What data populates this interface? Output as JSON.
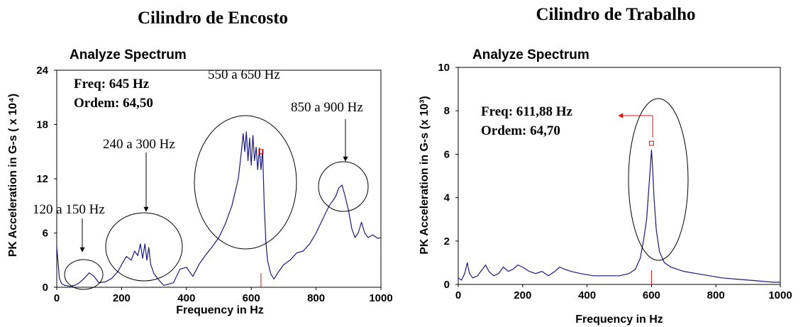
{
  "chart_data": [
    {
      "type": "line",
      "title": "Cilindro de Encosto",
      "subtitle": "Analyze Spectrum",
      "xlabel": "Frequency in Hz",
      "ylabel": "PK Acceleration in G-s ( x 10⁴)",
      "xlim": [
        0,
        1000
      ],
      "ylim": [
        0,
        24
      ],
      "xticks": [
        "0",
        "200",
        "400",
        "600",
        "800",
        "1000"
      ],
      "yticks": [
        "0",
        "6",
        "12",
        "18",
        "24"
      ],
      "info_lines": [
        "Freq: 645 Hz",
        "Ordem: 64,50"
      ],
      "cursor_x": 630,
      "cursor_marker_y": 15,
      "series": [
        {
          "color": "#1a1a7a",
          "x": [
            0,
            8,
            15,
            25,
            40,
            55,
            70,
            85,
            100,
            115,
            130,
            150,
            170,
            190,
            200,
            215,
            230,
            240,
            250,
            258,
            265,
            272,
            278,
            284,
            290,
            300,
            315,
            330,
            360,
            380,
            400,
            420,
            440,
            460,
            480,
            500,
            520,
            540,
            550,
            560,
            568,
            575,
            580,
            585,
            590,
            595,
            600,
            605,
            610,
            615,
            620,
            625,
            630,
            635,
            640,
            645,
            650,
            660,
            670,
            680,
            700,
            720,
            740,
            760,
            780,
            800,
            820,
            840,
            860,
            870,
            880,
            890,
            900,
            910,
            920,
            930,
            940,
            950,
            960,
            975,
            990,
            1000
          ],
          "values": [
            4.5,
            1.0,
            0.4,
            0.2,
            0.1,
            0.2,
            0.5,
            1.0,
            1.6,
            1.2,
            0.5,
            0.6,
            1.0,
            1.8,
            2.5,
            3.4,
            3.0,
            4.0,
            3.5,
            4.8,
            3.2,
            4.8,
            3.0,
            4.4,
            2.5,
            1.5,
            0.8,
            0.2,
            0.5,
            2.0,
            2.2,
            1.2,
            2.6,
            3.6,
            4.5,
            5.5,
            7.0,
            9.0,
            10.5,
            12.0,
            14.5,
            17.0,
            15.0,
            17.2,
            14.0,
            16.5,
            13.5,
            16.8,
            14.0,
            15.5,
            13.0,
            15.4,
            13.0,
            15.2,
            9.0,
            5.0,
            3.0,
            1.5,
            0.9,
            1.5,
            2.5,
            3.0,
            3.8,
            4.0,
            4.8,
            6.0,
            7.5,
            9.0,
            10.0,
            11.0,
            11.3,
            10.0,
            8.5,
            6.5,
            5.5,
            6.0,
            7.2,
            6.0,
            5.5,
            5.8,
            5.4,
            5.5
          ]
        }
      ],
      "annotations": [
        "550 a 650 Hz",
        "850 a 900 Hz",
        "240 a 300 Hz",
        "120 a 150 Hz"
      ]
    },
    {
      "type": "line",
      "title": "Cilindro de Trabalho",
      "subtitle": "Analyze Spectrum",
      "xlabel": "Frequency in Hz",
      "ylabel": "PK Acceleration in G-s (x 10³)",
      "xlim": [
        0,
        1000
      ],
      "ylim": [
        0,
        10
      ],
      "xticks": [
        "0",
        "200",
        "400",
        "600",
        "800",
        "1000"
      ],
      "yticks": [
        "0",
        "2",
        "4",
        "6",
        "8",
        "10"
      ],
      "info_lines": [
        "Freq: 611,88 Hz",
        "Ordem: 64,70"
      ],
      "cursor_x": 600,
      "cursor_marker_y": 6.5,
      "series": [
        {
          "color": "#1a1a7a",
          "x": [
            0,
            10,
            20,
            28,
            35,
            45,
            60,
            75,
            85,
            95,
            110,
            125,
            140,
            155,
            170,
            185,
            200,
            220,
            240,
            260,
            280,
            300,
            315,
            330,
            350,
            380,
            420,
            460,
            500,
            530,
            550,
            565,
            575,
            585,
            592,
            597,
            600,
            603,
            608,
            615,
            625,
            640,
            660,
            680,
            700,
            740,
            780,
            820,
            860,
            900,
            940,
            980,
            1000
          ],
          "values": [
            0.3,
            0.2,
            0.5,
            1.0,
            0.5,
            0.3,
            0.4,
            0.7,
            0.9,
            0.6,
            0.4,
            0.5,
            0.8,
            0.6,
            0.7,
            0.9,
            0.8,
            0.6,
            0.5,
            0.6,
            0.4,
            0.6,
            0.8,
            0.7,
            0.6,
            0.5,
            0.4,
            0.4,
            0.4,
            0.5,
            0.7,
            1.2,
            2.0,
            3.0,
            4.5,
            5.5,
            6.2,
            5.5,
            4.0,
            2.5,
            1.5,
            1.0,
            0.8,
            0.7,
            0.6,
            0.5,
            0.4,
            0.3,
            0.25,
            0.2,
            0.15,
            0.1,
            0.1
          ]
        }
      ],
      "annotations": []
    }
  ]
}
